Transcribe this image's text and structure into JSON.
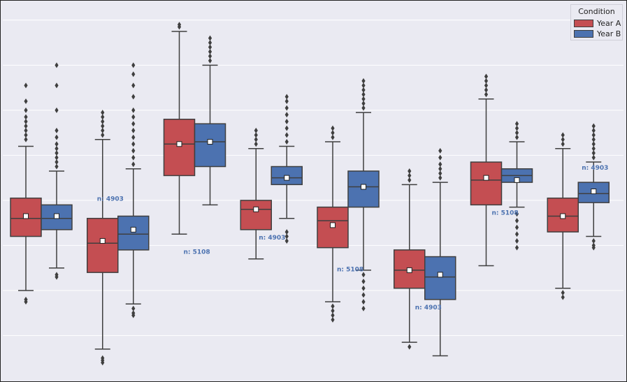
{
  "chart_data": {
    "type": "box",
    "title": "",
    "xlabel": "",
    "ylabel": "",
    "ylim": [
      0,
      8.4
    ],
    "grid": true,
    "legend": {
      "title": "Condition",
      "placement": "top-right"
    },
    "series": [
      {
        "name": "Year A",
        "color": "#c44e52"
      },
      {
        "name": "Year B",
        "color": "#4c72b0"
      }
    ],
    "groups": [
      {
        "boxes": [
          {
            "series": "Year A",
            "whislo": 2.0,
            "q1": 3.2,
            "med": 3.6,
            "q3": 4.05,
            "whishi": 5.2,
            "mean": 3.65,
            "fliers": [
              1.8,
              1.75,
              5.35,
              5.45,
              5.55,
              5.65,
              5.75,
              5.85,
              6.0,
              6.2,
              6.55
            ]
          },
          {
            "series": "Year B",
            "whislo": 2.5,
            "q1": 3.35,
            "med": 3.6,
            "q3": 3.9,
            "whishi": 4.65,
            "mean": 3.65,
            "fliers": [
              2.3,
              2.35,
              4.75,
              4.85,
              4.95,
              5.05,
              5.15,
              5.25,
              5.4,
              5.55,
              6.0,
              6.55,
              7.0
            ]
          }
        ]
      },
      {
        "label": "n: 4903",
        "boxes": [
          {
            "series": "Year A",
            "whislo": 0.7,
            "q1": 2.4,
            "med": 3.05,
            "q3": 3.6,
            "whishi": 5.35,
            "mean": 3.1,
            "fliers": [
              0.5,
              0.45,
              0.4,
              5.45,
              5.55,
              5.65,
              5.75,
              5.85,
              5.95
            ]
          },
          {
            "series": "Year B",
            "whislo": 1.7,
            "q1": 2.9,
            "med": 3.25,
            "q3": 3.65,
            "whishi": 4.7,
            "mean": 3.35,
            "fliers": [
              1.6,
              1.5,
              1.45,
              4.8,
              4.95,
              5.1,
              5.25,
              5.4,
              5.55,
              5.7,
              5.85,
              6.0,
              6.3,
              6.55,
              6.8,
              7.0
            ]
          }
        ]
      },
      {
        "label": "n: 5108",
        "boxes": [
          {
            "series": "Year A",
            "whislo": 3.25,
            "q1": 4.55,
            "med": 5.25,
            "q3": 5.8,
            "whishi": 7.75,
            "mean": 5.25,
            "fliers": [
              7.85,
              7.9
            ]
          },
          {
            "series": "Year B",
            "whislo": 3.9,
            "q1": 4.75,
            "med": 5.3,
            "q3": 5.7,
            "whishi": 7.0,
            "mean": 5.3,
            "fliers": [
              7.1,
              7.2,
              7.3,
              7.4,
              7.5,
              7.6
            ]
          }
        ]
      },
      {
        "label": "n: 4903",
        "boxes": [
          {
            "series": "Year A",
            "whislo": 2.7,
            "q1": 3.35,
            "med": 3.8,
            "q3": 4.0,
            "whishi": 5.15,
            "mean": 3.8,
            "fliers": [
              5.25,
              5.35,
              5.45,
              5.55
            ]
          },
          {
            "series": "Year B",
            "whislo": 3.6,
            "q1": 4.35,
            "med": 4.5,
            "q3": 4.75,
            "whishi": 5.2,
            "mean": 4.5,
            "fliers": [
              3.3,
              3.2,
              3.1,
              5.3,
              5.45,
              5.6,
              5.75,
              5.9,
              6.05,
              6.2,
              6.3
            ]
          }
        ]
      },
      {
        "label": "n: 5108",
        "boxes": [
          {
            "series": "Year A",
            "whislo": 1.75,
            "q1": 2.95,
            "med": 3.55,
            "q3": 3.85,
            "whishi": 5.3,
            "mean": 3.45,
            "fliers": [
              1.65,
              1.55,
              1.45,
              1.35,
              5.4,
              5.5,
              5.6
            ]
          },
          {
            "series": "Year B",
            "whislo": 2.45,
            "q1": 3.85,
            "med": 4.3,
            "q3": 4.65,
            "whishi": 5.95,
            "mean": 4.3,
            "fliers": [
              2.35,
              2.2,
              2.05,
              1.9,
              1.75,
              1.6,
              6.05,
              6.15,
              6.25,
              6.35,
              6.45,
              6.55,
              6.65
            ]
          }
        ]
      },
      {
        "label": "n: 4903",
        "boxes": [
          {
            "series": "Year A",
            "whislo": 0.85,
            "q1": 2.05,
            "med": 2.45,
            "q3": 2.9,
            "whishi": 4.35,
            "mean": 2.45,
            "fliers": [
              0.75,
              4.45,
              4.55,
              4.65
            ]
          },
          {
            "series": "Year B",
            "whislo": 0.55,
            "q1": 1.8,
            "med": 2.3,
            "q3": 2.75,
            "whishi": 4.4,
            "mean": 2.35,
            "fliers": [
              4.5,
              4.6,
              4.7,
              4.8,
              4.95,
              5.1
            ]
          }
        ]
      },
      {
        "label": "n: 5108",
        "boxes": [
          {
            "series": "Year A",
            "whislo": 2.55,
            "q1": 3.9,
            "med": 4.45,
            "q3": 4.85,
            "whishi": 6.25,
            "mean": 4.5,
            "fliers": [
              6.35,
              6.45,
              6.55,
              6.65,
              6.75
            ]
          },
          {
            "series": "Year B",
            "whislo": 3.85,
            "q1": 4.4,
            "med": 4.55,
            "q3": 4.7,
            "whishi": 5.3,
            "mean": 4.45,
            "fliers": [
              3.7,
              3.55,
              3.4,
              3.25,
              3.1,
              2.95,
              5.4,
              5.5,
              5.6,
              5.7
            ]
          }
        ]
      },
      {
        "label": "n: 4903",
        "boxes": [
          {
            "series": "Year A",
            "whislo": 2.05,
            "q1": 3.3,
            "med": 3.65,
            "q3": 4.05,
            "whishi": 5.15,
            "mean": 3.65,
            "fliers": [
              1.95,
              1.85,
              5.25,
              5.35,
              5.45
            ]
          },
          {
            "series": "Year B",
            "whislo": 3.2,
            "q1": 3.95,
            "med": 4.15,
            "q3": 4.4,
            "whishi": 4.85,
            "mean": 4.2,
            "fliers": [
              3.1,
              3.0,
              2.95,
              4.95,
              5.05,
              5.15,
              5.25,
              5.35,
              5.45,
              5.55,
              5.65
            ]
          }
        ]
      }
    ]
  }
}
